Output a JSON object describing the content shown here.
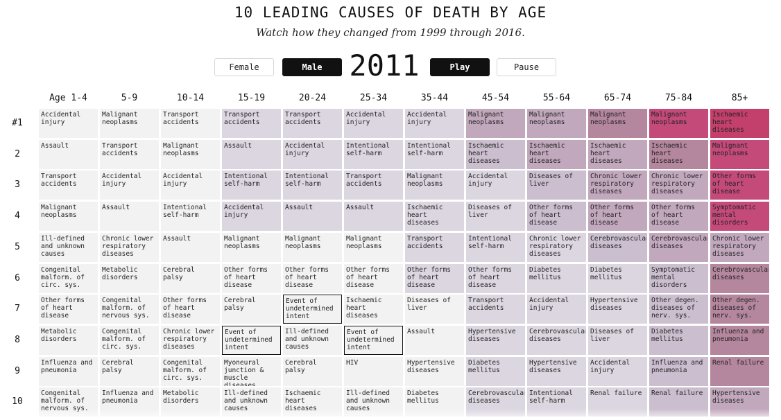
{
  "header": {
    "title": "10 LEADING CAUSES OF DEATH BY AGE",
    "subtitle": "Watch how they changed from 1999 through 2016."
  },
  "controls": {
    "female_label": "Female",
    "male_label": "Male",
    "year": "2011",
    "play_label": "Play",
    "pause_label": "Pause",
    "selected_sex": "Male"
  },
  "colors": {
    "gray": "#f2f2f2",
    "light": "#dcd6e1",
    "mid": "#cbbfcf",
    "mauve": "#c2a8bd",
    "pink": "#b5879f",
    "rose": "#c44a7a",
    "hot": "#c33f6c"
  },
  "columns": [
    "Age 1-4",
    "5-9",
    "10-14",
    "15-19",
    "20-24",
    "25-34",
    "35-44",
    "45-54",
    "55-64",
    "65-74",
    "75-84",
    "85+"
  ],
  "rank_labels": [
    "#1",
    "2",
    "3",
    "4",
    "5",
    "6",
    "7",
    "8",
    "9",
    "10"
  ],
  "grid": [
    [
      {
        "t": "Accidental injury",
        "c": "gray"
      },
      {
        "t": "Malignant neoplasms",
        "c": "gray"
      },
      {
        "t": "Transport accidents",
        "c": "gray"
      },
      {
        "t": "Transport accidents",
        "c": "light"
      },
      {
        "t": "Transport accidents",
        "c": "light"
      },
      {
        "t": "Accidental injury",
        "c": "light"
      },
      {
        "t": "Accidental injury",
        "c": "light"
      },
      {
        "t": "Malignant neoplasms",
        "c": "mauve"
      },
      {
        "t": "Malignant neoplasms",
        "c": "mauve"
      },
      {
        "t": "Malignant neoplasms",
        "c": "pink"
      },
      {
        "t": "Malignant neoplasms",
        "c": "rose"
      },
      {
        "t": "Ischaemic heart diseases",
        "c": "hot"
      }
    ],
    [
      {
        "t": "Assault",
        "c": "gray"
      },
      {
        "t": "Transport accidents",
        "c": "gray"
      },
      {
        "t": "Malignant neoplasms",
        "c": "gray"
      },
      {
        "t": "Assault",
        "c": "light"
      },
      {
        "t": "Accidental injury",
        "c": "light"
      },
      {
        "t": "Intentional self-harm",
        "c": "light"
      },
      {
        "t": "Intentional self-harm",
        "c": "light"
      },
      {
        "t": "Ischaemic heart diseases",
        "c": "mid"
      },
      {
        "t": "Ischaemic heart diseases",
        "c": "mauve"
      },
      {
        "t": "Ischaemic heart diseases",
        "c": "mauve"
      },
      {
        "t": "Ischaemic heart diseases",
        "c": "pink"
      },
      {
        "t": "Malignant neoplasms",
        "c": "rose"
      }
    ],
    [
      {
        "t": "Transport accidents",
        "c": "gray"
      },
      {
        "t": "Accidental injury",
        "c": "gray"
      },
      {
        "t": "Accidental injury",
        "c": "gray"
      },
      {
        "t": "Intentional self-harm",
        "c": "light"
      },
      {
        "t": "Intentional self-harm",
        "c": "light"
      },
      {
        "t": "Transport accidents",
        "c": "light"
      },
      {
        "t": "Malignant neoplasms",
        "c": "light"
      },
      {
        "t": "Accidental injury",
        "c": "light"
      },
      {
        "t": "Diseases of liver",
        "c": "mid"
      },
      {
        "t": "Chronic lower respiratory diseases",
        "c": "mauve"
      },
      {
        "t": "Chronic lower respiratory diseases",
        "c": "mauve"
      },
      {
        "t": "Other forms of heart disease",
        "c": "rose"
      }
    ],
    [
      {
        "t": "Malignant neoplasms",
        "c": "gray"
      },
      {
        "t": "Assault",
        "c": "gray"
      },
      {
        "t": "Intentional self-harm",
        "c": "gray"
      },
      {
        "t": "Accidental injury",
        "c": "light"
      },
      {
        "t": "Assault",
        "c": "light"
      },
      {
        "t": "Assault",
        "c": "light"
      },
      {
        "t": "Ischaemic heart diseases",
        "c": "light"
      },
      {
        "t": "Diseases of liver",
        "c": "light"
      },
      {
        "t": "Other forms of heart disease",
        "c": "mid"
      },
      {
        "t": "Other forms of heart disease",
        "c": "mauve"
      },
      {
        "t": "Other forms of heart disease",
        "c": "mauve"
      },
      {
        "t": "Symptomatic mental disorders",
        "c": "rose"
      }
    ],
    [
      {
        "t": "Ill-defined and unknown causes",
        "c": "gray"
      },
      {
        "t": "Chronic lower respiratory diseases",
        "c": "gray"
      },
      {
        "t": "Assault",
        "c": "gray"
      },
      {
        "t": "Malignant neoplasms",
        "c": "gray"
      },
      {
        "t": "Malignant neoplasms",
        "c": "gray"
      },
      {
        "t": "Malignant neoplasms",
        "c": "gray"
      },
      {
        "t": "Transport accidents",
        "c": "light"
      },
      {
        "t": "Intentional self-harm",
        "c": "light"
      },
      {
        "t": "Chronic lower respiratory diseases",
        "c": "light"
      },
      {
        "t": "Cerebrovascular diseases",
        "c": "mid"
      },
      {
        "t": "Cerebrovascular diseases",
        "c": "mauve"
      },
      {
        "t": "Chronic lower respiratory diseases",
        "c": "mauve"
      }
    ],
    [
      {
        "t": "Congenital malform. of circ. sys.",
        "c": "gray"
      },
      {
        "t": "Metabolic disorders",
        "c": "gray"
      },
      {
        "t": "Cerebral palsy",
        "c": "gray"
      },
      {
        "t": "Other forms of heart disease",
        "c": "gray"
      },
      {
        "t": "Other forms of heart disease",
        "c": "gray"
      },
      {
        "t": "Other forms of heart disease",
        "c": "gray"
      },
      {
        "t": "Other forms of heart disease",
        "c": "light"
      },
      {
        "t": "Other forms of heart disease",
        "c": "light"
      },
      {
        "t": "Diabetes mellitus",
        "c": "light"
      },
      {
        "t": "Diabetes mellitus",
        "c": "light"
      },
      {
        "t": "Symptomatic mental disorders",
        "c": "mid"
      },
      {
        "t": "Cerebrovascular diseases",
        "c": "pink"
      }
    ],
    [
      {
        "t": "Other forms of heart disease",
        "c": "gray"
      },
      {
        "t": "Congenital malform. of nervous sys.",
        "c": "gray"
      },
      {
        "t": "Other forms of heart disease",
        "c": "gray"
      },
      {
        "t": "Cerebral palsy",
        "c": "gray"
      },
      {
        "t": "Event of undetermined intent",
        "c": "gray",
        "hl": true
      },
      {
        "t": "Ischaemic heart diseases",
        "c": "gray"
      },
      {
        "t": "Diseases of liver",
        "c": "gray"
      },
      {
        "t": "Transport accidents",
        "c": "light"
      },
      {
        "t": "Accidental injury",
        "c": "light"
      },
      {
        "t": "Hypertensive diseases",
        "c": "light"
      },
      {
        "t": "Other degen. diseases of nerv. sys.",
        "c": "mid"
      },
      {
        "t": "Other degen. diseases of nerv. sys.",
        "c": "pink"
      }
    ],
    [
      {
        "t": "Metabolic disorders",
        "c": "gray"
      },
      {
        "t": "Congenital malform. of circ. sys.",
        "c": "gray"
      },
      {
        "t": "Chronic lower respiratory diseases",
        "c": "gray"
      },
      {
        "t": "Event of undetermined intent",
        "c": "gray",
        "hl": true
      },
      {
        "t": "Ill-defined and unknown causes",
        "c": "gray"
      },
      {
        "t": "Event of undetermined intent",
        "c": "gray",
        "hl": true
      },
      {
        "t": "Assault",
        "c": "gray"
      },
      {
        "t": "Hypertensive diseases",
        "c": "light"
      },
      {
        "t": "Cerebrovascular diseases",
        "c": "light"
      },
      {
        "t": "Diseases of liver",
        "c": "light"
      },
      {
        "t": "Diabetes mellitus",
        "c": "mid"
      },
      {
        "t": "Influenza and pneumonia",
        "c": "pink"
      }
    ],
    [
      {
        "t": "Influenza and pneumonia",
        "c": "gray"
      },
      {
        "t": "Cerebral palsy",
        "c": "gray"
      },
      {
        "t": "Congenital malform. of circ. sys.",
        "c": "gray"
      },
      {
        "t": "Myoneural junction & muscle diseases",
        "c": "gray"
      },
      {
        "t": "Cerebral palsy",
        "c": "gray"
      },
      {
        "t": "HIV",
        "c": "gray"
      },
      {
        "t": "Hypertensive diseases",
        "c": "gray"
      },
      {
        "t": "Diabetes mellitus",
        "c": "light"
      },
      {
        "t": "Hypertensive diseases",
        "c": "light"
      },
      {
        "t": "Accidental injury",
        "c": "light"
      },
      {
        "t": "Influenza and pneumonia",
        "c": "mid"
      },
      {
        "t": "Renal failure",
        "c": "pink"
      }
    ],
    [
      {
        "t": "Congenital malform. of nervous sys.",
        "c": "gray"
      },
      {
        "t": "Influenza and pneumonia",
        "c": "gray"
      },
      {
        "t": "Metabolic disorders",
        "c": "gray"
      },
      {
        "t": "Ill-defined and unknown causes",
        "c": "gray"
      },
      {
        "t": "Ischaemic heart diseases",
        "c": "gray"
      },
      {
        "t": "Ill-defined and unknown causes",
        "c": "gray"
      },
      {
        "t": "Diabetes mellitus",
        "c": "gray"
      },
      {
        "t": "Cerebrovascular diseases",
        "c": "light"
      },
      {
        "t": "Intentional self-harm",
        "c": "light"
      },
      {
        "t": "Renal failure",
        "c": "light"
      },
      {
        "t": "Renal failure",
        "c": "mid"
      },
      {
        "t": "Hypertensive diseases",
        "c": "mauve"
      }
    ]
  ]
}
